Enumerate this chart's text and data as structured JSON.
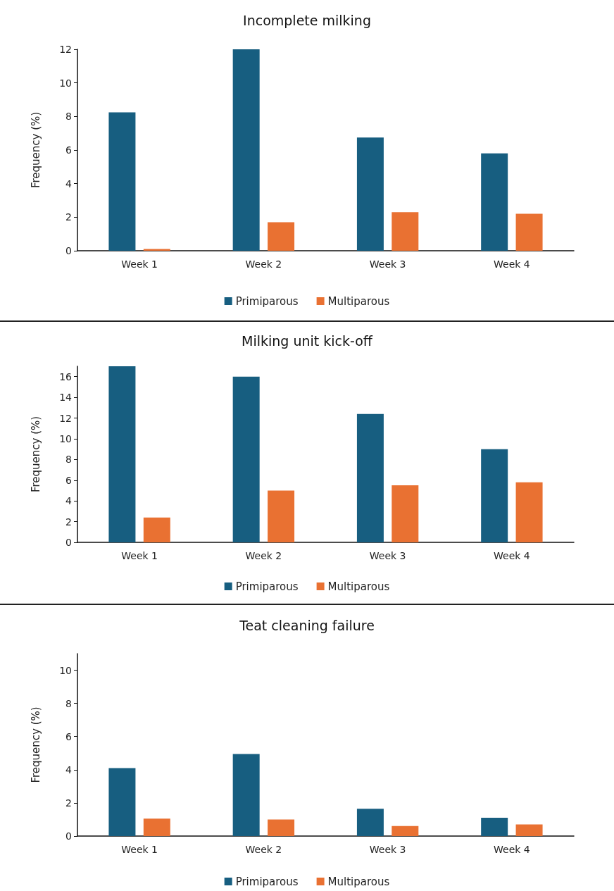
{
  "chart_data": [
    {
      "type": "bar",
      "title": "Incomplete milking",
      "ylabel": "Frequency (%)",
      "categories": [
        "Week 1",
        "Week 2",
        "Week 3",
        "Week 4"
      ],
      "series": [
        {
          "name": "Primiparous",
          "color": "#175e80",
          "values": [
            8.25,
            12.0,
            6.75,
            5.8
          ]
        },
        {
          "name": "Multiparous",
          "color": "#e97132",
          "values": [
            0.1,
            1.7,
            2.3,
            2.2
          ]
        }
      ],
      "ylim": [
        0,
        12
      ],
      "yticks": [
        0,
        2,
        4,
        6,
        8,
        10,
        12
      ],
      "grid": false,
      "legend": "bottom"
    },
    {
      "type": "bar",
      "title": "Milking unit kick-off",
      "ylabel": "Frequency (%)",
      "categories": [
        "Week 1",
        "Week 2",
        "Week 3",
        "Week 4"
      ],
      "series": [
        {
          "name": "Primiparous",
          "color": "#175e80",
          "values": [
            17.0,
            16.0,
            12.4,
            9.0
          ]
        },
        {
          "name": "Multiparous",
          "color": "#e97132",
          "values": [
            2.4,
            5.0,
            5.5,
            5.8
          ]
        }
      ],
      "ylim": [
        0,
        17
      ],
      "yticks": [
        0,
        2,
        4,
        6,
        8,
        10,
        12,
        14,
        16
      ],
      "grid": false,
      "legend": "bottom"
    },
    {
      "type": "bar",
      "title": "Teat cleaning failure",
      "ylabel": "Frequency (%)",
      "categories": [
        "Week 1",
        "Week 2",
        "Week 3",
        "Week 4"
      ],
      "series": [
        {
          "name": "Primiparous",
          "color": "#175e80",
          "values": [
            4.1,
            4.95,
            1.65,
            1.1
          ]
        },
        {
          "name": "Multiparous",
          "color": "#e97132",
          "values": [
            1.05,
            1.0,
            0.6,
            0.7
          ]
        }
      ],
      "ylim": [
        0,
        11
      ],
      "yticks": [
        0,
        2,
        4,
        6,
        8,
        10
      ],
      "grid": false,
      "legend": "bottom"
    }
  ]
}
